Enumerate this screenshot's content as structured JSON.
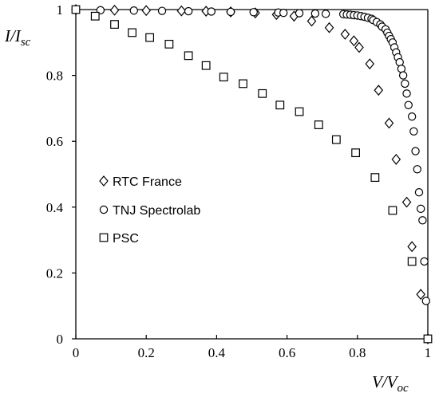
{
  "chart_data": {
    "type": "scatter",
    "xlabel": {
      "main": "V/V",
      "sub": "oc"
    },
    "ylabel": {
      "main": "I/I",
      "sub": "sc"
    },
    "xlim": [
      0,
      1
    ],
    "ylim": [
      0,
      1
    ],
    "xticks": [
      "0",
      "0.2",
      "0.4",
      "0.6",
      "0.8",
      "1"
    ],
    "yticks": [
      "0",
      "0.2",
      "0.4",
      "0.6",
      "0.8",
      "1"
    ],
    "grid": false,
    "legend_position": "middle-left",
    "series": [
      {
        "name": "RTC France",
        "marker": "diamond",
        "x": [
          0.0,
          0.11,
          0.2,
          0.3,
          0.37,
          0.44,
          0.51,
          0.57,
          0.62,
          0.67,
          0.72,
          0.765,
          0.79,
          0.805,
          0.835,
          0.86,
          0.89,
          0.91,
          0.94,
          0.955,
          0.98,
          1.0
        ],
        "y": [
          1.0,
          0.998,
          0.997,
          0.996,
          0.995,
          0.993,
          0.99,
          0.985,
          0.98,
          0.965,
          0.945,
          0.925,
          0.905,
          0.885,
          0.835,
          0.755,
          0.655,
          0.545,
          0.415,
          0.28,
          0.135,
          0.0
        ]
      },
      {
        "name": "TNJ Spectrolab",
        "marker": "circle",
        "x": [
          0.0,
          0.07,
          0.165,
          0.245,
          0.32,
          0.385,
          0.44,
          0.505,
          0.575,
          0.59,
          0.635,
          0.68,
          0.71,
          0.76,
          0.77,
          0.78,
          0.79,
          0.8,
          0.81,
          0.82,
          0.83,
          0.84,
          0.845,
          0.855,
          0.865,
          0.87,
          0.88,
          0.885,
          0.89,
          0.895,
          0.9,
          0.905,
          0.91,
          0.915,
          0.92,
          0.925,
          0.93,
          0.935,
          0.94,
          0.945,
          0.955,
          0.96,
          0.965,
          0.97,
          0.975,
          0.98,
          0.985,
          0.99,
          0.995,
          1.0
        ],
        "y": [
          1.0,
          0.998,
          0.997,
          0.996,
          0.995,
          0.994,
          0.993,
          0.992,
          0.991,
          0.99,
          0.989,
          0.988,
          0.987,
          0.986,
          0.985,
          0.984,
          0.983,
          0.982,
          0.98,
          0.978,
          0.975,
          0.972,
          0.968,
          0.962,
          0.955,
          0.948,
          0.94,
          0.93,
          0.92,
          0.91,
          0.9,
          0.885,
          0.87,
          0.855,
          0.84,
          0.82,
          0.8,
          0.775,
          0.745,
          0.71,
          0.675,
          0.63,
          0.57,
          0.515,
          0.445,
          0.395,
          0.36,
          0.235,
          0.115,
          0.0
        ]
      },
      {
        "name": "PSC",
        "marker": "square",
        "x": [
          0.0,
          0.055,
          0.11,
          0.16,
          0.21,
          0.265,
          0.32,
          0.37,
          0.42,
          0.475,
          0.53,
          0.58,
          0.635,
          0.69,
          0.74,
          0.795,
          0.85,
          0.9,
          0.955,
          1.0
        ],
        "y": [
          1.0,
          0.98,
          0.955,
          0.93,
          0.915,
          0.895,
          0.86,
          0.83,
          0.795,
          0.775,
          0.745,
          0.71,
          0.69,
          0.65,
          0.605,
          0.565,
          0.49,
          0.39,
          0.235,
          0.0
        ]
      }
    ]
  }
}
